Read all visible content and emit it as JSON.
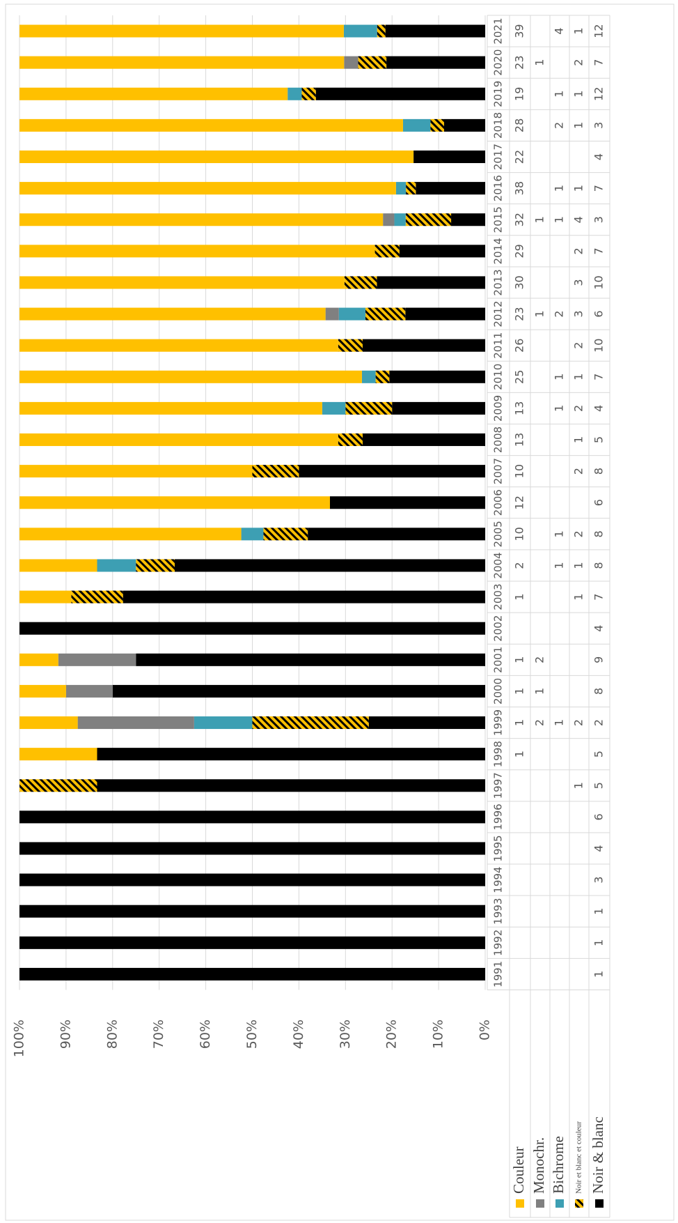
{
  "chart_data": {
    "type": "bar",
    "stacking": "percent",
    "orientation": "horizontal",
    "categories": [
      "1991",
      "1992",
      "1993",
      "1994",
      "1995",
      "1996",
      "1997",
      "1998",
      "1999",
      "2000",
      "2001",
      "2002",
      "2003",
      "2004",
      "2005",
      "2006",
      "2007",
      "2008",
      "2009",
      "2010",
      "2011",
      "2012",
      "2013",
      "2014",
      "2015",
      "2016",
      "2017",
      "2018",
      "2019",
      "2020",
      "2021"
    ],
    "series": [
      {
        "name": "Couleur",
        "color": "#ffc000",
        "values": [
          null,
          null,
          null,
          null,
          null,
          null,
          null,
          1,
          1,
          1,
          1,
          null,
          1,
          2,
          10,
          12,
          10,
          13,
          13,
          25,
          26,
          23,
          30,
          29,
          32,
          38,
          22,
          28,
          19,
          23,
          39
        ]
      },
      {
        "name": "Monochr.",
        "color": "#808080",
        "values": [
          null,
          null,
          null,
          null,
          null,
          null,
          null,
          null,
          2,
          1,
          2,
          null,
          null,
          null,
          null,
          null,
          null,
          null,
          null,
          null,
          null,
          1,
          null,
          null,
          1,
          null,
          null,
          null,
          null,
          1,
          null
        ]
      },
      {
        "name": "Bichrome",
        "color": "#3d9fb3",
        "values": [
          null,
          null,
          null,
          null,
          null,
          null,
          null,
          null,
          1,
          null,
          null,
          null,
          null,
          1,
          1,
          null,
          null,
          null,
          1,
          1,
          null,
          2,
          null,
          null,
          1,
          1,
          null,
          2,
          1,
          null,
          4
        ]
      },
      {
        "name": "Noir et blanc et couleur",
        "color": "#ffc000",
        "hatch": true,
        "values": [
          null,
          null,
          null,
          null,
          null,
          null,
          1,
          null,
          2,
          null,
          null,
          null,
          1,
          1,
          2,
          null,
          2,
          1,
          2,
          1,
          2,
          3,
          3,
          2,
          4,
          1,
          null,
          1,
          1,
          2,
          1
        ]
      },
      {
        "name": "Noir & blanc",
        "color": "#000000",
        "values": [
          1,
          1,
          1,
          3,
          4,
          6,
          5,
          5,
          2,
          8,
          9,
          4,
          7,
          8,
          8,
          6,
          8,
          5,
          4,
          7,
          10,
          6,
          10,
          7,
          3,
          7,
          4,
          3,
          12,
          7,
          12
        ]
      }
    ],
    "ylim": [
      0,
      100
    ],
    "yticks": [
      {
        "value": 0,
        "label": "0%"
      },
      {
        "value": 10,
        "label": "10%"
      },
      {
        "value": 20,
        "label": "20%"
      },
      {
        "value": 30,
        "label": "30%"
      },
      {
        "value": 40,
        "label": "40%"
      },
      {
        "value": 50,
        "label": "50%"
      },
      {
        "value": 60,
        "label": "60%"
      },
      {
        "value": 70,
        "label": "70%"
      },
      {
        "value": 80,
        "label": "80%"
      },
      {
        "value": 90,
        "label": "90%"
      },
      {
        "value": 100,
        "label": "100%"
      }
    ],
    "grid": true,
    "data_table": true
  }
}
